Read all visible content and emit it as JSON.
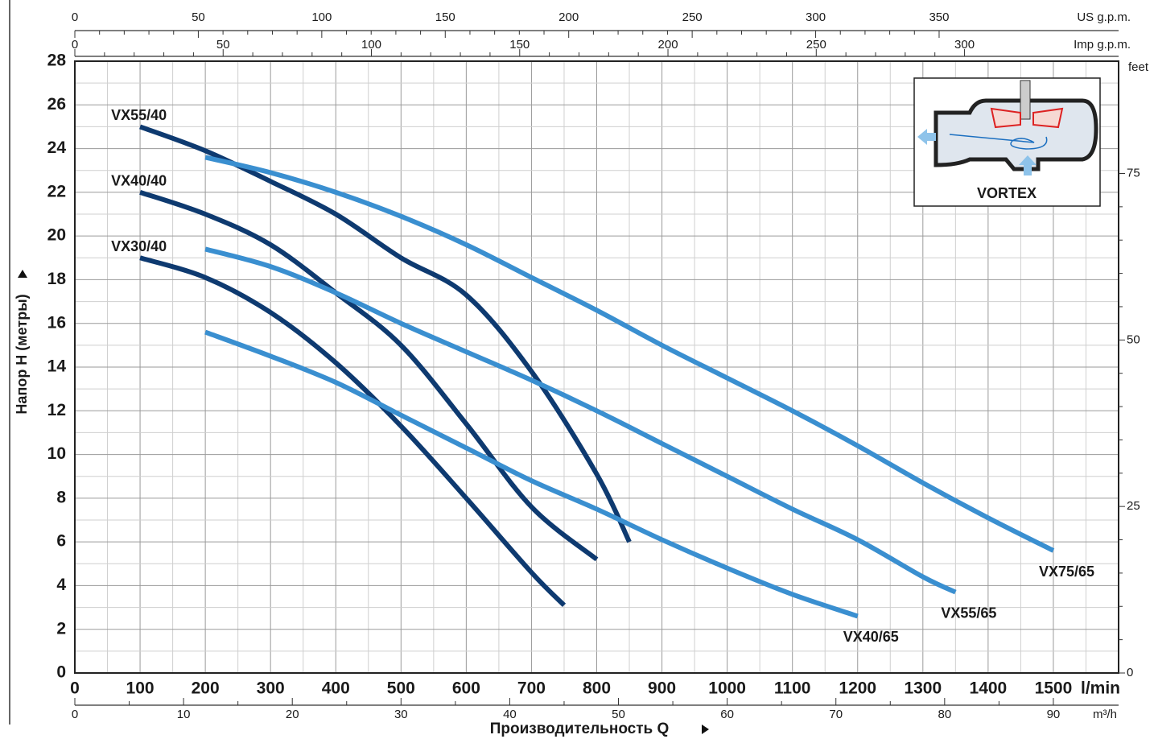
{
  "chart_data": {
    "type": "line",
    "xlabel": "Производительность Q",
    "ylabel": "Напор H (метры)",
    "xunit": "l/min",
    "xlim": [
      0,
      1600
    ],
    "xticks": [
      0,
      100,
      200,
      300,
      400,
      500,
      600,
      700,
      800,
      900,
      1000,
      1100,
      1200,
      1300,
      1400,
      1500
    ],
    "ylim": [
      0,
      28
    ],
    "yticks": [
      0,
      2,
      4,
      6,
      8,
      10,
      12,
      14,
      16,
      18,
      20,
      22,
      24,
      26,
      28
    ],
    "grid": true,
    "top_axes": [
      {
        "unit": "US g.p.m.",
        "xlim": [
          0,
          422.68
        ],
        "xticks": [
          0,
          50,
          100,
          150,
          200,
          250,
          300,
          350
        ]
      },
      {
        "unit": "Imp g.p.m.",
        "xlim": [
          0,
          351.95
        ],
        "xticks": [
          0,
          50,
          100,
          150,
          200,
          250,
          300
        ]
      }
    ],
    "bottom_axis": {
      "unit": "m³/h",
      "xlim": [
        0,
        96
      ],
      "xticks": [
        0,
        10,
        20,
        30,
        40,
        50,
        60,
        70,
        80,
        90
      ]
    },
    "y2label": "feet",
    "y2lim": [
      0,
      91.86
    ],
    "y2ticks": [
      0,
      25,
      50,
      75
    ],
    "inset_label": "VORTEX",
    "series": [
      {
        "name": "VX55/40",
        "color": "#0e3a70",
        "x": [
          100,
          200,
          300,
          400,
          500,
          600,
          700,
          800,
          850
        ],
        "values": [
          25,
          23.9,
          22.5,
          21,
          19,
          17.3,
          13.8,
          9.1,
          6
        ]
      },
      {
        "name": "VX40/40",
        "color": "#0e3a70",
        "x": [
          100,
          200,
          300,
          400,
          500,
          600,
          700,
          800
        ],
        "values": [
          22,
          21,
          19.6,
          17.4,
          15,
          11.4,
          7.6,
          5.2
        ]
      },
      {
        "name": "VX30/40",
        "color": "#0e3a70",
        "x": [
          100,
          200,
          300,
          400,
          500,
          600,
          700,
          750
        ],
        "values": [
          19,
          18.1,
          16.5,
          14.2,
          11.3,
          8,
          4.6,
          3.1
        ]
      },
      {
        "name": "VX75/65",
        "color": "#3a8fd0",
        "x": [
          200,
          300,
          400,
          500,
          600,
          700,
          800,
          900,
          1000,
          1100,
          1200,
          1300,
          1400,
          1500
        ],
        "values": [
          23.6,
          22.9,
          22,
          20.9,
          19.6,
          18.1,
          16.6,
          15,
          13.5,
          12,
          10.4,
          8.7,
          7.1,
          5.6
        ]
      },
      {
        "name": "VX55/65",
        "color": "#3a8fd0",
        "x": [
          200,
          300,
          400,
          500,
          600,
          700,
          800,
          900,
          1000,
          1100,
          1200,
          1300,
          1350
        ],
        "values": [
          19.4,
          18.6,
          17.4,
          16,
          14.7,
          13.4,
          12,
          10.5,
          9,
          7.5,
          6.1,
          4.4,
          3.7
        ]
      },
      {
        "name": "VX40/65",
        "color": "#3a8fd0",
        "x": [
          200,
          300,
          400,
          500,
          600,
          700,
          800,
          900,
          1000,
          1100,
          1200
        ],
        "values": [
          15.6,
          14.5,
          13.3,
          11.8,
          10.3,
          8.8,
          7.5,
          6.1,
          4.8,
          3.6,
          2.6
        ]
      }
    ]
  }
}
